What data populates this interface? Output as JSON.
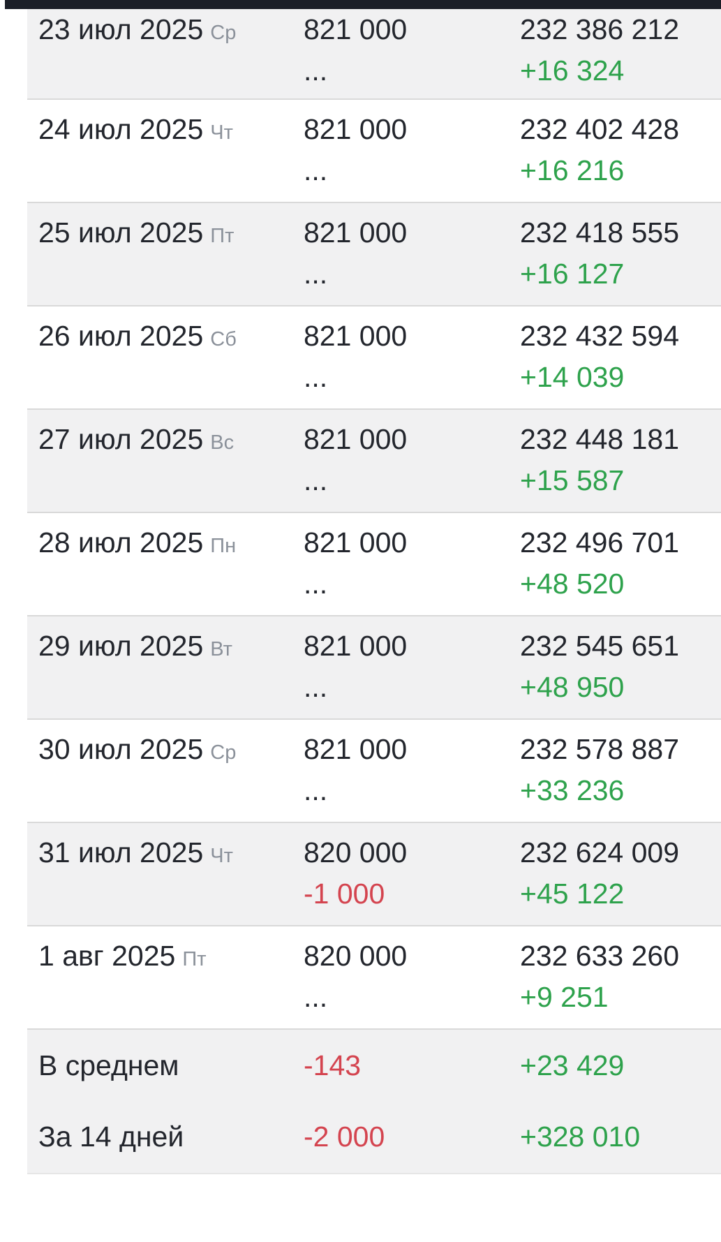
{
  "rows": [
    {
      "date": "23 июл 2025",
      "dow": "Ср",
      "value": "821 000",
      "value_change": "...",
      "total": "232 386 212",
      "total_change": "+16 324"
    },
    {
      "date": "24 июл 2025",
      "dow": "Чт",
      "value": "821 000",
      "value_change": "...",
      "total": "232 402 428",
      "total_change": "+16 216"
    },
    {
      "date": "25 июл 2025",
      "dow": "Пт",
      "value": "821 000",
      "value_change": "...",
      "total": "232 418 555",
      "total_change": "+16 127"
    },
    {
      "date": "26 июл 2025",
      "dow": "Сб",
      "value": "821 000",
      "value_change": "...",
      "total": "232 432 594",
      "total_change": "+14 039"
    },
    {
      "date": "27 июл 2025",
      "dow": "Вс",
      "value": "821 000",
      "value_change": "...",
      "total": "232 448 181",
      "total_change": "+15 587"
    },
    {
      "date": "28 июл 2025",
      "dow": "Пн",
      "value": "821 000",
      "value_change": "...",
      "total": "232 496 701",
      "total_change": "+48 520"
    },
    {
      "date": "29 июл 2025",
      "dow": "Вт",
      "value": "821 000",
      "value_change": "...",
      "total": "232 545 651",
      "total_change": "+48 950"
    },
    {
      "date": "30 июл 2025",
      "dow": "Ср",
      "value": "821 000",
      "value_change": "...",
      "total": "232 578 887",
      "total_change": "+33 236"
    },
    {
      "date": "31 июл 2025",
      "dow": "Чт",
      "value": "820 000",
      "value_change": "-1 000",
      "total": "232 624 009",
      "total_change": "+45 122"
    },
    {
      "date": "1 авг 2025",
      "dow": "Пт",
      "value": "820 000",
      "value_change": "...",
      "total": "232 633 260",
      "total_change": "+9 251"
    }
  ],
  "summary": [
    {
      "label": "В среднем",
      "value_change": "-143",
      "total_change": "+23 429"
    },
    {
      "label": "За 14 дней",
      "value_change": "-2 000",
      "total_change": "+328 010"
    }
  ],
  "colors": {
    "positive": "#2ea24c",
    "negative": "#d4444f",
    "text": "#23262d",
    "weekday_muted": "#8b919a",
    "row_alt_bg": "#f1f1f2",
    "divider": "#d9d9d9",
    "topbar_bg": "#1b1f28"
  }
}
